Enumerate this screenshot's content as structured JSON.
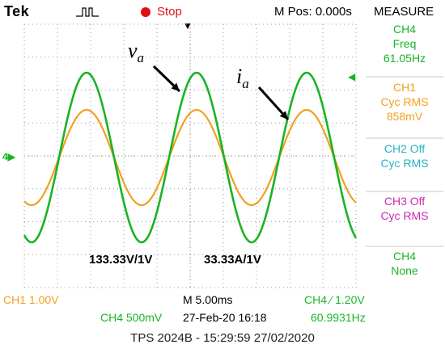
{
  "header": {
    "brand": "Tek",
    "acq_state": "Stop",
    "m_pos": "M Pos: 0.000s",
    "measure_title": "MEASURE"
  },
  "measure_menu": [
    {
      "lines": [
        "CH4",
        "Freq",
        "61.05Hz"
      ],
      "color": "#19b424"
    },
    {
      "lines": [
        "CH1",
        "Cyc RMS",
        "858mV"
      ],
      "color": "#f0a020"
    },
    {
      "lines": [
        "CH2 Off",
        "Cyc RMS"
      ],
      "color": "#2ab0c8"
    },
    {
      "lines": [
        "CH3 Off",
        "Cyc RMS"
      ],
      "color": "#d02ab4"
    },
    {
      "lines": [
        "CH4",
        "None"
      ],
      "color": "#19b424"
    }
  ],
  "annotations": {
    "va_symbol": "v",
    "va_sub": "a",
    "ia_symbol": "i",
    "ia_sub": "a",
    "voltage_scale": "133.33V/1V",
    "current_scale": "33.33A/1V"
  },
  "status": {
    "ch1": "CH1  1.00V",
    "ch4": "CH4  500mV",
    "timebase": "M 5.00ms",
    "date_time": "27-Feb-20 16:18",
    "trigger": "CH4 ⁄ 1.20V",
    "trigger_freq": "60.9931Hz"
  },
  "footer": "TPS 2024B - 15:29:59   27/02/2020",
  "colors": {
    "ch1": "#f0a020",
    "ch4": "#19b424",
    "grid": "#9a9a9a",
    "stop": "#e01010"
  }
}
